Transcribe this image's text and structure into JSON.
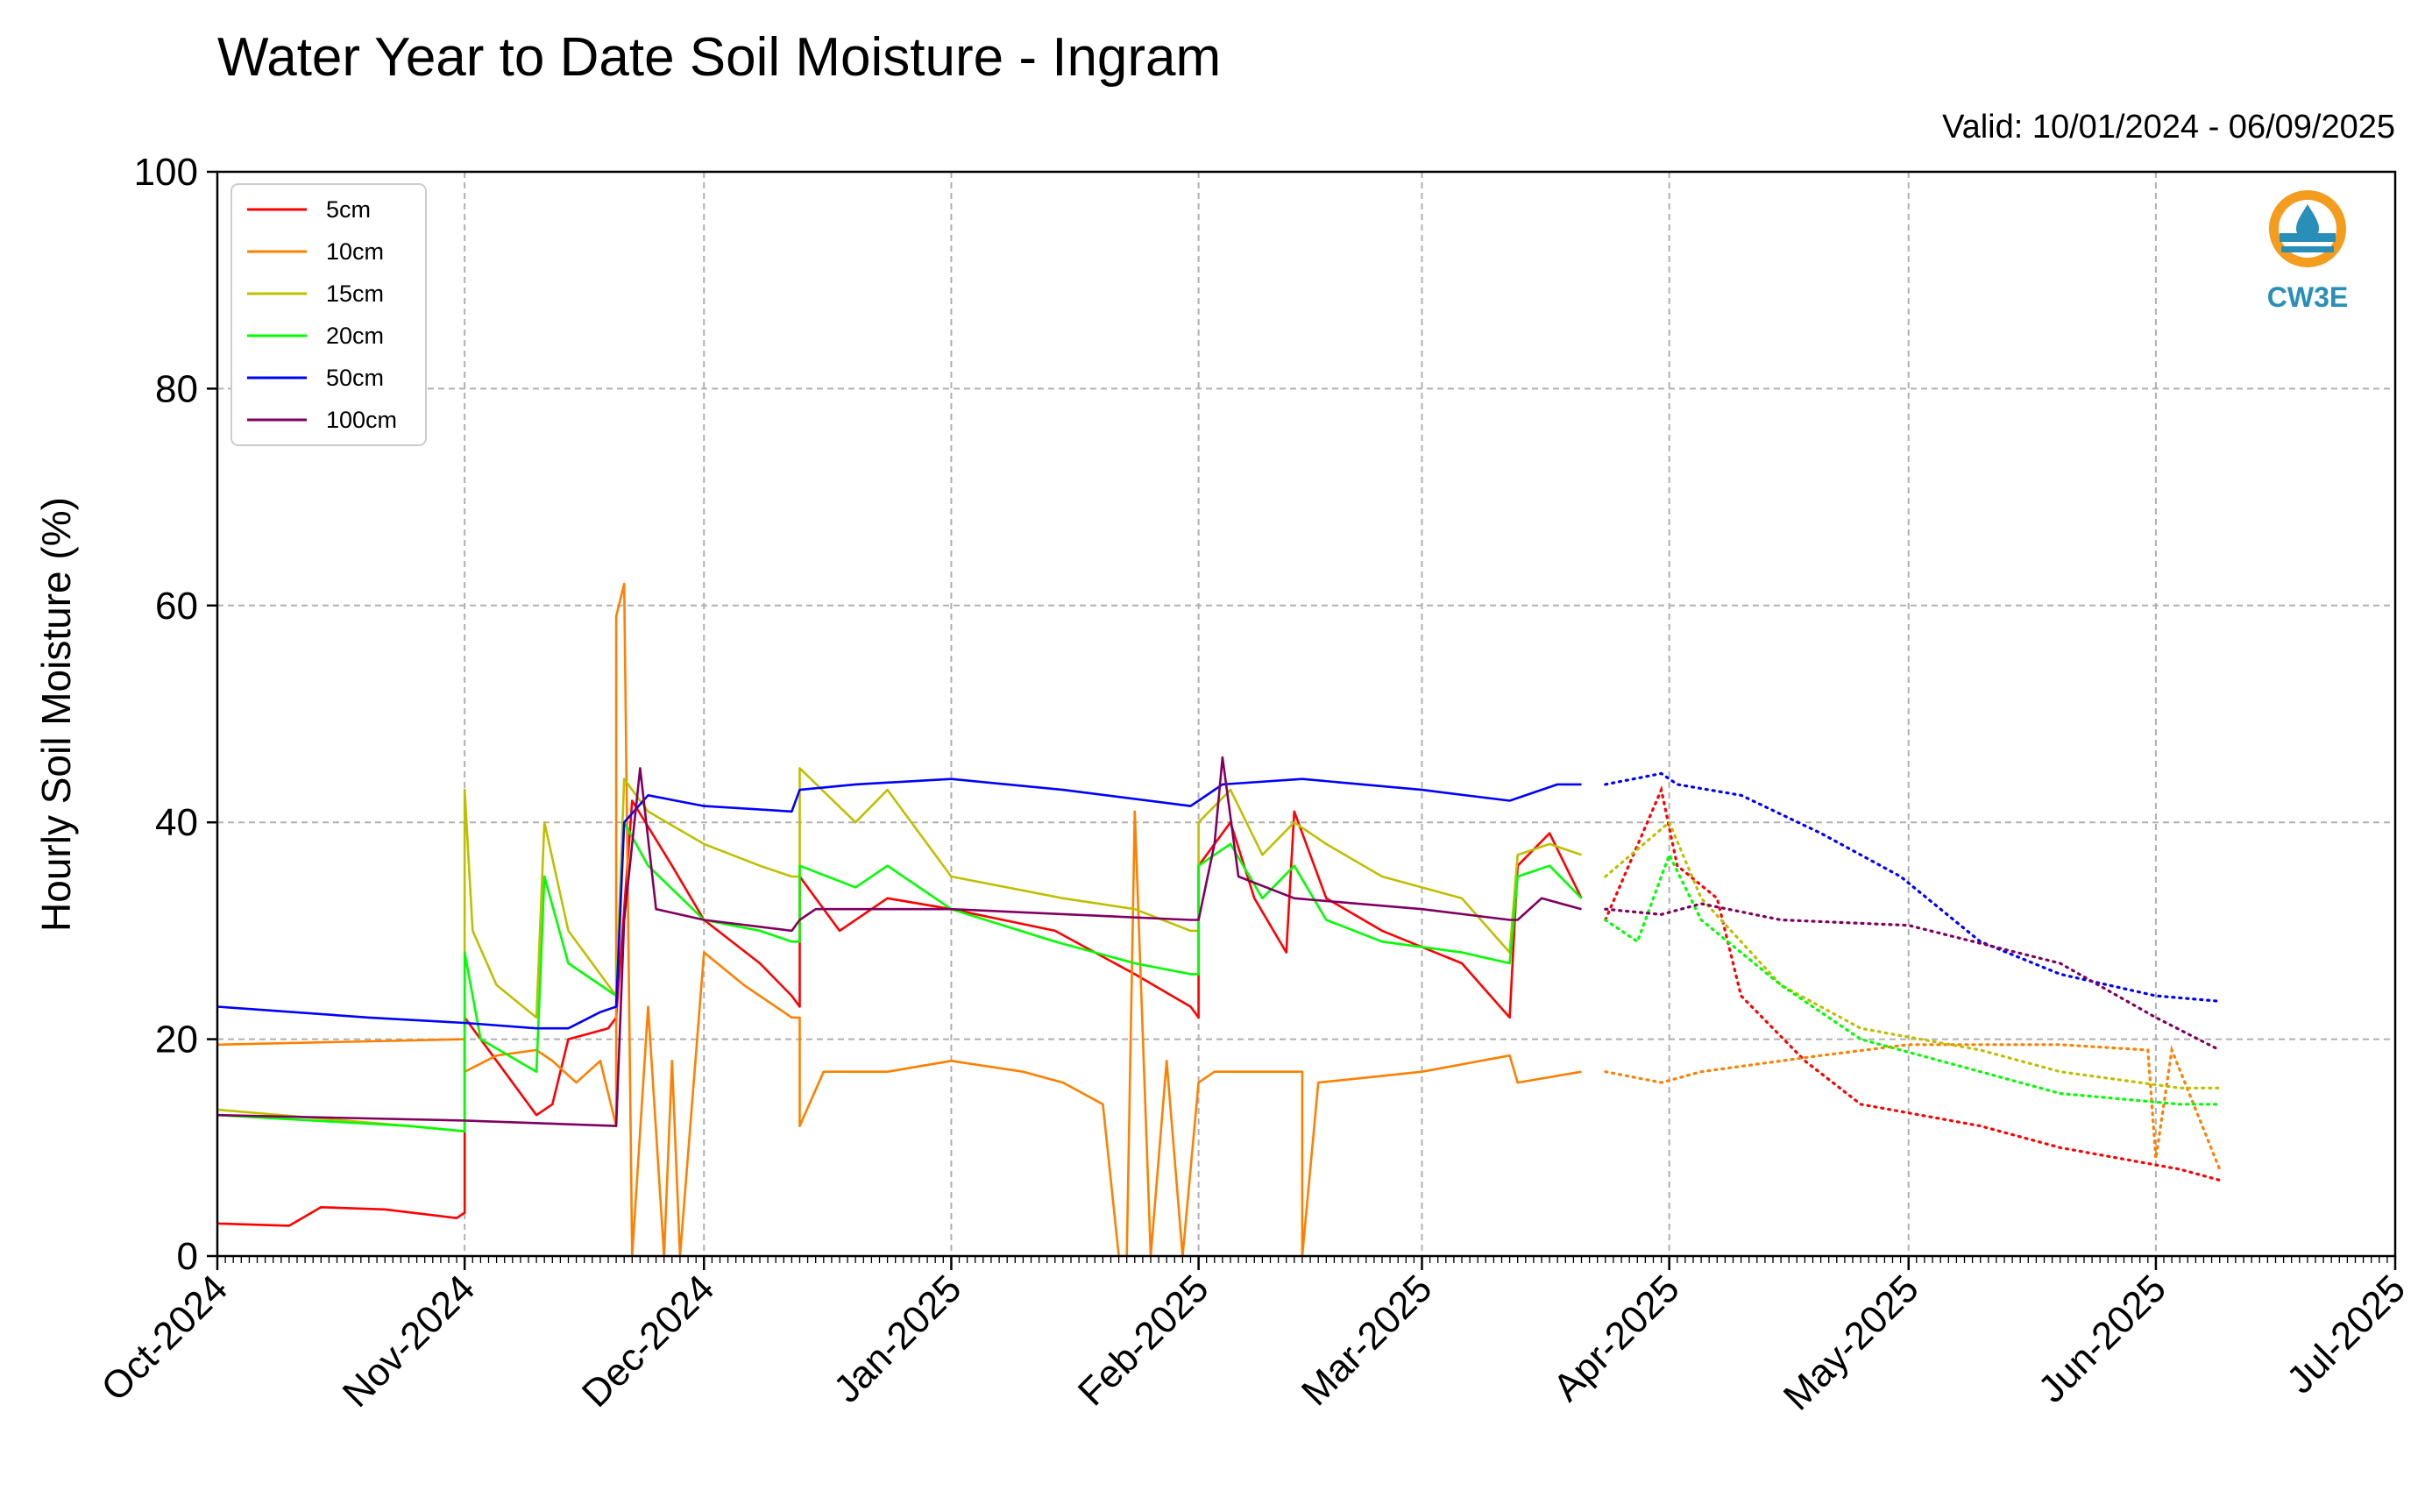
{
  "chart_data": {
    "type": "line",
    "title": "Water Year to Date Soil Moisture - Ingram",
    "subtitle": "Valid: 10/01/2024 - 06/09/2025",
    "ylabel": "Hourly Soil Moisture (%)",
    "xlabel": "",
    "ylim": [
      0,
      100
    ],
    "xlim": [
      "2024-10-01",
      "2025-07-01"
    ],
    "yticks": [
      0,
      20,
      40,
      60,
      80,
      100
    ],
    "xtick_labels": [
      "Oct-2024",
      "Nov-2024",
      "Dec-2024",
      "Jan-2025",
      "Feb-2025",
      "Mar-2025",
      "Apr-2025",
      "May-2025",
      "Jun-2025",
      "Jul-2025"
    ],
    "xtick_dates": [
      "2024-10-01",
      "2024-11-01",
      "2024-12-01",
      "2025-01-01",
      "2025-02-01",
      "2025-03-01",
      "2025-04-01",
      "2025-05-01",
      "2025-06-01",
      "2025-07-01"
    ],
    "grid": true,
    "legend_position": "top-left",
    "logo": {
      "text": "CW3E",
      "color": "#2a8fb8",
      "accent": "#f39c1e"
    },
    "series": [
      {
        "name": "5cm",
        "color": "#ff0000",
        "solid": [
          [
            "2024-10-01",
            3
          ],
          [
            "2024-10-10",
            2.8
          ],
          [
            "2024-10-14",
            4.5
          ],
          [
            "2024-10-22",
            4.3
          ],
          [
            "2024-10-31",
            3.5
          ],
          [
            "2024-11-01",
            4
          ],
          [
            "2024-11-01",
            22
          ],
          [
            "2024-11-05",
            18
          ],
          [
            "2024-11-10",
            13
          ],
          [
            "2024-11-12",
            14
          ],
          [
            "2024-11-14",
            20
          ],
          [
            "2024-11-19",
            21
          ],
          [
            "2024-11-20",
            22
          ],
          [
            "2024-11-22",
            42
          ],
          [
            "2024-11-27",
            36
          ],
          [
            "2024-12-01",
            31
          ],
          [
            "2024-12-08",
            27
          ],
          [
            "2024-12-12",
            24
          ],
          [
            "2024-12-13",
            23
          ],
          [
            "2024-12-13",
            35
          ],
          [
            "2024-12-18",
            30
          ],
          [
            "2024-12-24",
            33
          ],
          [
            "2025-01-01",
            32
          ],
          [
            "2025-01-14",
            30
          ],
          [
            "2025-01-24",
            26
          ],
          [
            "2025-01-31",
            23
          ],
          [
            "2025-02-01",
            22
          ],
          [
            "2025-02-01",
            36
          ],
          [
            "2025-02-05",
            40
          ],
          [
            "2025-02-08",
            33
          ],
          [
            "2025-02-12",
            28
          ],
          [
            "2025-02-13",
            41
          ],
          [
            "2025-02-17",
            33
          ],
          [
            "2025-02-24",
            30
          ],
          [
            "2025-03-06",
            27
          ],
          [
            "2025-03-12",
            22
          ],
          [
            "2025-03-13",
            36
          ],
          [
            "2025-03-17",
            39
          ],
          [
            "2025-03-21",
            33
          ]
        ],
        "dotted": [
          [
            "2025-03-24",
            31
          ],
          [
            "2025-03-31",
            43
          ],
          [
            "2025-04-02",
            36
          ],
          [
            "2025-04-07",
            33
          ],
          [
            "2025-04-10",
            24
          ],
          [
            "2025-04-18",
            18
          ],
          [
            "2025-04-25",
            14
          ],
          [
            "2025-05-10",
            12
          ],
          [
            "2025-05-20",
            10
          ],
          [
            "2025-06-04",
            8
          ],
          [
            "2025-06-09",
            7
          ]
        ]
      },
      {
        "name": "10cm",
        "color": "#ff8000",
        "solid": [
          [
            "2024-10-01",
            19.5
          ],
          [
            "2024-11-01",
            20
          ],
          [
            "2024-11-01",
            17
          ],
          [
            "2024-11-05",
            18.5
          ],
          [
            "2024-11-10",
            19
          ],
          [
            "2024-11-12",
            18
          ],
          [
            "2024-11-15",
            16
          ],
          [
            "2024-11-18",
            18
          ],
          [
            "2024-11-20",
            12
          ],
          [
            "2024-11-20",
            59
          ],
          [
            "2024-11-21",
            62
          ],
          [
            "2024-11-22",
            0
          ],
          [
            "2024-11-24",
            23
          ],
          [
            "2024-11-26",
            0
          ],
          [
            "2024-11-27",
            18
          ],
          [
            "2024-11-28",
            0
          ],
          [
            "2024-12-01",
            28
          ],
          [
            "2024-12-06",
            25
          ],
          [
            "2024-12-12",
            22
          ],
          [
            "2024-12-13",
            22
          ],
          [
            "2024-12-13",
            12
          ],
          [
            "2024-12-16",
            17
          ],
          [
            "2024-12-24",
            17
          ],
          [
            "2025-01-01",
            18
          ],
          [
            "2025-01-10",
            17
          ],
          [
            "2025-01-15",
            16
          ],
          [
            "2025-01-20",
            14
          ],
          [
            "2025-01-22",
            0
          ],
          [
            "2025-01-23",
            0
          ],
          [
            "2025-01-24",
            41
          ],
          [
            "2025-01-26",
            0
          ],
          [
            "2025-01-28",
            18
          ],
          [
            "2025-01-30",
            0
          ],
          [
            "2025-02-01",
            16
          ],
          [
            "2025-02-03",
            17
          ],
          [
            "2025-02-14",
            17
          ],
          [
            "2025-02-14",
            0
          ],
          [
            "2025-02-16",
            16
          ],
          [
            "2025-03-01",
            17
          ],
          [
            "2025-03-12",
            18.5
          ],
          [
            "2025-03-13",
            16
          ],
          [
            "2025-03-21",
            17
          ]
        ],
        "dotted": [
          [
            "2025-03-24",
            17
          ],
          [
            "2025-03-31",
            16
          ],
          [
            "2025-04-05",
            17
          ],
          [
            "2025-04-20",
            18.5
          ],
          [
            "2025-05-01",
            19.5
          ],
          [
            "2025-05-20",
            19.5
          ],
          [
            "2025-05-31",
            19
          ],
          [
            "2025-06-01",
            9
          ],
          [
            "2025-06-03",
            19
          ],
          [
            "2025-06-09",
            8
          ]
        ]
      },
      {
        "name": "15cm",
        "color": "#bfbf00",
        "solid": [
          [
            "2024-10-01",
            13.5
          ],
          [
            "2024-10-25",
            12
          ],
          [
            "2024-11-01",
            11.5
          ],
          [
            "2024-11-01",
            43
          ],
          [
            "2024-11-02",
            30
          ],
          [
            "2024-11-05",
            25
          ],
          [
            "2024-11-10",
            22
          ],
          [
            "2024-11-11",
            40
          ],
          [
            "2024-11-14",
            30
          ],
          [
            "2024-11-20",
            24
          ],
          [
            "2024-11-21",
            44
          ],
          [
            "2024-11-24",
            41
          ],
          [
            "2024-12-01",
            38
          ],
          [
            "2024-12-08",
            36
          ],
          [
            "2024-12-12",
            35
          ],
          [
            "2024-12-13",
            35
          ],
          [
            "2024-12-13",
            45
          ],
          [
            "2024-12-20",
            40
          ],
          [
            "2024-12-24",
            43
          ],
          [
            "2025-01-01",
            35
          ],
          [
            "2025-01-15",
            33
          ],
          [
            "2025-01-24",
            32
          ],
          [
            "2025-01-31",
            30
          ],
          [
            "2025-02-01",
            30
          ],
          [
            "2025-02-01",
            40
          ],
          [
            "2025-02-05",
            43
          ],
          [
            "2025-02-09",
            37
          ],
          [
            "2025-02-13",
            40
          ],
          [
            "2025-02-17",
            38
          ],
          [
            "2025-02-24",
            35
          ],
          [
            "2025-03-06",
            33
          ],
          [
            "2025-03-12",
            28
          ],
          [
            "2025-03-13",
            37
          ],
          [
            "2025-03-17",
            38
          ],
          [
            "2025-03-21",
            37
          ]
        ],
        "dotted": [
          [
            "2025-03-24",
            35
          ],
          [
            "2025-04-01",
            40
          ],
          [
            "2025-04-05",
            33
          ],
          [
            "2025-04-15",
            25
          ],
          [
            "2025-04-25",
            21
          ],
          [
            "2025-05-10",
            19
          ],
          [
            "2025-05-20",
            17
          ],
          [
            "2025-06-04",
            15.5
          ],
          [
            "2025-06-09",
            15.5
          ]
        ]
      },
      {
        "name": "20cm",
        "color": "#00ff00",
        "solid": [
          [
            "2024-10-01",
            13
          ],
          [
            "2024-10-25",
            12
          ],
          [
            "2024-11-01",
            11.5
          ],
          [
            "2024-11-01",
            28
          ],
          [
            "2024-11-03",
            20
          ],
          [
            "2024-11-10",
            17
          ],
          [
            "2024-11-11",
            35
          ],
          [
            "2024-11-14",
            27
          ],
          [
            "2024-11-20",
            24
          ],
          [
            "2024-11-21",
            40
          ],
          [
            "2024-11-24",
            36
          ],
          [
            "2024-12-01",
            31
          ],
          [
            "2024-12-08",
            30
          ],
          [
            "2024-12-12",
            29
          ],
          [
            "2024-12-13",
            29
          ],
          [
            "2024-12-13",
            36
          ],
          [
            "2024-12-20",
            34
          ],
          [
            "2024-12-24",
            36
          ],
          [
            "2025-01-01",
            32
          ],
          [
            "2025-01-14",
            29
          ],
          [
            "2025-01-24",
            27
          ],
          [
            "2025-01-31",
            26
          ],
          [
            "2025-02-01",
            26
          ],
          [
            "2025-02-01",
            36
          ],
          [
            "2025-02-05",
            38
          ],
          [
            "2025-02-09",
            33
          ],
          [
            "2025-02-13",
            36
          ],
          [
            "2025-02-17",
            31
          ],
          [
            "2025-02-24",
            29
          ],
          [
            "2025-03-06",
            28
          ],
          [
            "2025-03-12",
            27
          ],
          [
            "2025-03-13",
            35
          ],
          [
            "2025-03-17",
            36
          ],
          [
            "2025-03-21",
            33
          ]
        ],
        "dotted": [
          [
            "2025-03-24",
            31
          ],
          [
            "2025-03-28",
            29
          ],
          [
            "2025-04-01",
            37
          ],
          [
            "2025-04-05",
            31
          ],
          [
            "2025-04-15",
            25
          ],
          [
            "2025-04-25",
            20
          ],
          [
            "2025-05-10",
            17
          ],
          [
            "2025-05-20",
            15
          ],
          [
            "2025-06-04",
            14
          ],
          [
            "2025-06-09",
            14
          ]
        ]
      },
      {
        "name": "50cm",
        "color": "#0000ff",
        "solid": [
          [
            "2024-10-01",
            23
          ],
          [
            "2024-10-20",
            22
          ],
          [
            "2024-11-01",
            21.5
          ],
          [
            "2024-11-10",
            21
          ],
          [
            "2024-11-14",
            21
          ],
          [
            "2024-11-18",
            22.5
          ],
          [
            "2024-11-20",
            23
          ],
          [
            "2024-11-21",
            40
          ],
          [
            "2024-11-24",
            42.5
          ],
          [
            "2024-12-01",
            41.5
          ],
          [
            "2024-12-12",
            41
          ],
          [
            "2024-12-13",
            43
          ],
          [
            "2024-12-20",
            43.5
          ],
          [
            "2025-01-01",
            44
          ],
          [
            "2025-01-15",
            43
          ],
          [
            "2025-01-31",
            41.5
          ],
          [
            "2025-02-01",
            42
          ],
          [
            "2025-02-04",
            43.5
          ],
          [
            "2025-02-14",
            44
          ],
          [
            "2025-03-01",
            43
          ],
          [
            "2025-03-12",
            42
          ],
          [
            "2025-03-18",
            43.5
          ],
          [
            "2025-03-21",
            43.5
          ]
        ],
        "dotted": [
          [
            "2025-03-24",
            43.5
          ],
          [
            "2025-03-31",
            44.5
          ],
          [
            "2025-04-02",
            43.5
          ],
          [
            "2025-04-10",
            42.5
          ],
          [
            "2025-04-20",
            39
          ],
          [
            "2025-04-30",
            35
          ],
          [
            "2025-05-10",
            29
          ],
          [
            "2025-05-20",
            26
          ],
          [
            "2025-06-01",
            24
          ],
          [
            "2025-06-09",
            23.5
          ]
        ]
      },
      {
        "name": "100cm",
        "color": "#800060",
        "solid": [
          [
            "2024-10-01",
            13
          ],
          [
            "2024-11-01",
            12.5
          ],
          [
            "2024-11-20",
            12
          ],
          [
            "2024-11-21",
            31
          ],
          [
            "2024-11-23",
            45
          ],
          [
            "2024-11-25",
            32
          ],
          [
            "2024-12-01",
            31
          ],
          [
            "2024-12-12",
            30
          ],
          [
            "2024-12-13",
            31
          ],
          [
            "2024-12-15",
            32
          ],
          [
            "2025-01-01",
            32
          ],
          [
            "2025-01-31",
            31
          ],
          [
            "2025-02-01",
            31
          ],
          [
            "2025-02-03",
            38
          ],
          [
            "2025-02-04",
            46
          ],
          [
            "2025-02-06",
            35
          ],
          [
            "2025-02-13",
            33
          ],
          [
            "2025-03-01",
            32
          ],
          [
            "2025-03-12",
            31
          ],
          [
            "2025-03-13",
            31
          ],
          [
            "2025-03-16",
            33
          ],
          [
            "2025-03-21",
            32
          ]
        ],
        "dotted": [
          [
            "2025-03-24",
            32
          ],
          [
            "2025-03-31",
            31.5
          ],
          [
            "2025-04-05",
            32.5
          ],
          [
            "2025-04-15",
            31
          ],
          [
            "2025-05-01",
            30.5
          ],
          [
            "2025-05-20",
            27
          ],
          [
            "2025-06-01",
            22
          ],
          [
            "2025-06-09",
            19
          ]
        ]
      }
    ]
  }
}
